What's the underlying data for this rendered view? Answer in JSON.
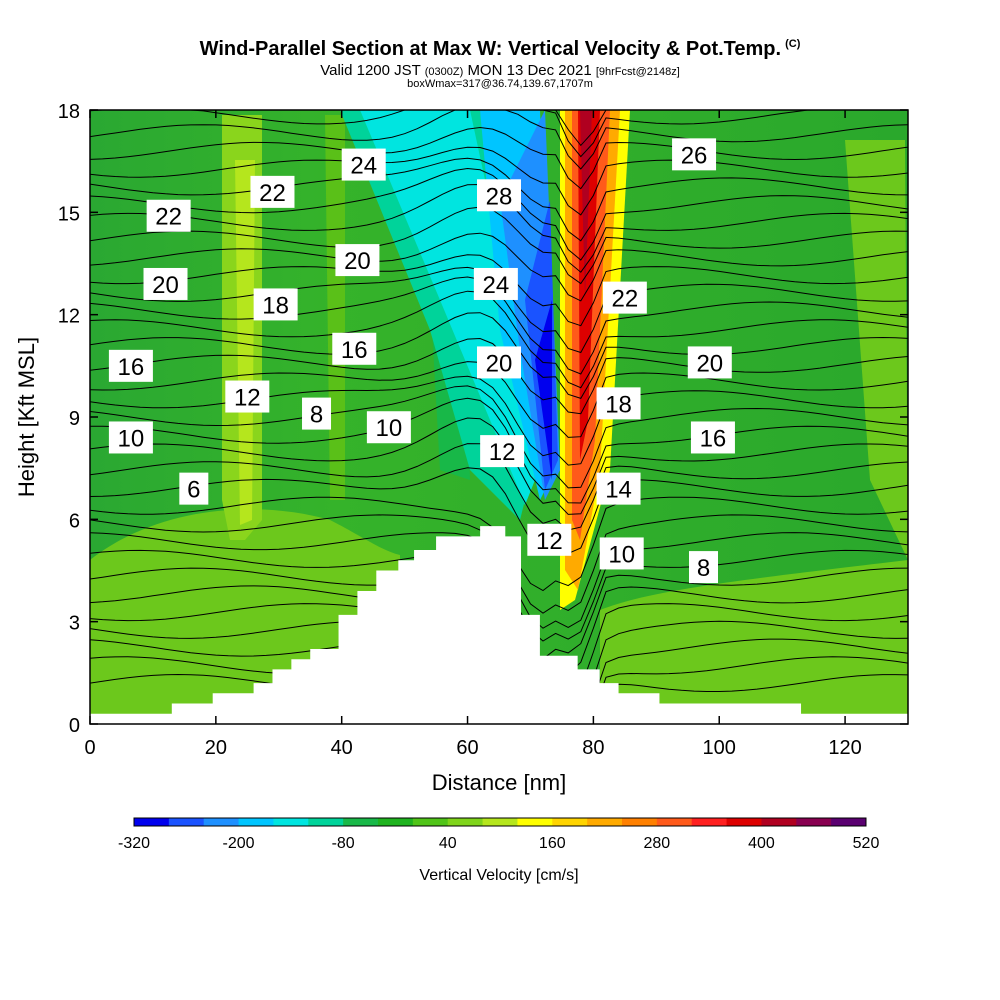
{
  "header": {
    "title": "Wind-Parallel Section at Max W: Vertical Velocity & Pot.Temp.",
    "copyright": "(C)",
    "valid_line_main_a": "Valid 1200 JST",
    "valid_line_small_a": "(0300Z)",
    "valid_line_main_b": "MON 13 Dec 2021",
    "valid_line_small_b": "[9hrFcst@2148z]",
    "box_line": "boxWmax=317@36.74,139.67,1707m"
  },
  "chart_data": {
    "type": "heatmap",
    "xlabel": "Distance [nm]",
    "ylabel": "Height [Kft MSL]",
    "xlim": [
      0,
      130
    ],
    "ylim": [
      0,
      18
    ],
    "x_ticks": [
      "0",
      "20",
      "40",
      "60",
      "80",
      "100",
      "120"
    ],
    "y_ticks": [
      "0",
      "3",
      "6",
      "9",
      "12",
      "15",
      "18"
    ],
    "colorbar": {
      "title": "Vertical Velocity [cm/s]",
      "tick_labels": [
        "-320",
        "-200",
        "-80",
        "40",
        "160",
        "280",
        "400",
        "520"
      ],
      "levels": [
        -320,
        -280,
        -240,
        -200,
        -160,
        -120,
        -80,
        -40,
        0,
        40,
        80,
        120,
        160,
        200,
        240,
        280,
        320,
        360,
        400,
        440,
        480,
        520
      ],
      "colors": [
        "#0000ee",
        "#1a53ff",
        "#1e90ff",
        "#00c5ff",
        "#00e5e0",
        "#00d39a",
        "#18b848",
        "#1fb31f",
        "#50c418",
        "#7fd41a",
        "#b5e61d",
        "#ffff00",
        "#ffd400",
        "#ffaa00",
        "#ff8000",
        "#ff5a1a",
        "#ff2020",
        "#dd0000",
        "#b00020",
        "#880050",
        "#5a0070"
      ]
    },
    "isentrope_labels": [
      {
        "text": "22",
        "x": 12.5,
        "y": 14.9
      },
      {
        "text": "22",
        "x": 29.0,
        "y": 15.6
      },
      {
        "text": "24",
        "x": 43.5,
        "y": 16.4
      },
      {
        "text": "28",
        "x": 65.0,
        "y": 15.5
      },
      {
        "text": "26",
        "x": 96.0,
        "y": 16.7
      },
      {
        "text": "20",
        "x": 12.0,
        "y": 12.9
      },
      {
        "text": "20",
        "x": 42.5,
        "y": 13.6
      },
      {
        "text": "24",
        "x": 64.5,
        "y": 12.9
      },
      {
        "text": "22",
        "x": 85.0,
        "y": 12.5
      },
      {
        "text": "18",
        "x": 29.5,
        "y": 12.3
      },
      {
        "text": "16",
        "x": 6.5,
        "y": 10.5
      },
      {
        "text": "16",
        "x": 42.0,
        "y": 11.0
      },
      {
        "text": "20",
        "x": 65.0,
        "y": 10.6
      },
      {
        "text": "20",
        "x": 98.5,
        "y": 10.6
      },
      {
        "text": "12",
        "x": 25.0,
        "y": 9.6
      },
      {
        "text": "8",
        "x": 36.0,
        "y": 9.1
      },
      {
        "text": "10",
        "x": 47.5,
        "y": 8.7
      },
      {
        "text": "18",
        "x": 84.0,
        "y": 9.4
      },
      {
        "text": "10",
        "x": 6.5,
        "y": 8.4
      },
      {
        "text": "12",
        "x": 65.5,
        "y": 8.0
      },
      {
        "text": "16",
        "x": 99.0,
        "y": 8.4
      },
      {
        "text": "6",
        "x": 16.5,
        "y": 6.9
      },
      {
        "text": "14",
        "x": 84.0,
        "y": 6.9
      },
      {
        "text": "12",
        "x": 73.0,
        "y": 5.4
      },
      {
        "text": "10",
        "x": 84.5,
        "y": 5.0
      },
      {
        "text": "8",
        "x": 97.5,
        "y": 4.6
      }
    ],
    "terrain": {
      "x": [
        0,
        13,
        13,
        19.5,
        19.5,
        26,
        26,
        29,
        29,
        32,
        32,
        35,
        35,
        39.5,
        39.5,
        42.5,
        42.5,
        45.5,
        45.5,
        49,
        49,
        51.5,
        51.5,
        55,
        55,
        62,
        62,
        66,
        66,
        68.5,
        68.5,
        71.5,
        71.5,
        77.5,
        77.5,
        81,
        81,
        84,
        84,
        90.5,
        90.5,
        113,
        113,
        130
      ],
      "y": [
        0.3,
        0.3,
        0.6,
        0.6,
        0.9,
        0.9,
        1.2,
        1.2,
        1.6,
        1.6,
        1.9,
        1.9,
        2.2,
        2.2,
        3.2,
        3.2,
        3.9,
        3.9,
        4.5,
        4.5,
        4.8,
        4.8,
        5.1,
        5.1,
        5.5,
        5.5,
        5.8,
        5.8,
        5.5,
        5.5,
        3.2,
        3.2,
        2.0,
        2.0,
        1.6,
        1.6,
        1.2,
        1.2,
        0.9,
        0.9,
        0.6,
        0.6,
        0.3,
        0.3
      ]
    }
  }
}
